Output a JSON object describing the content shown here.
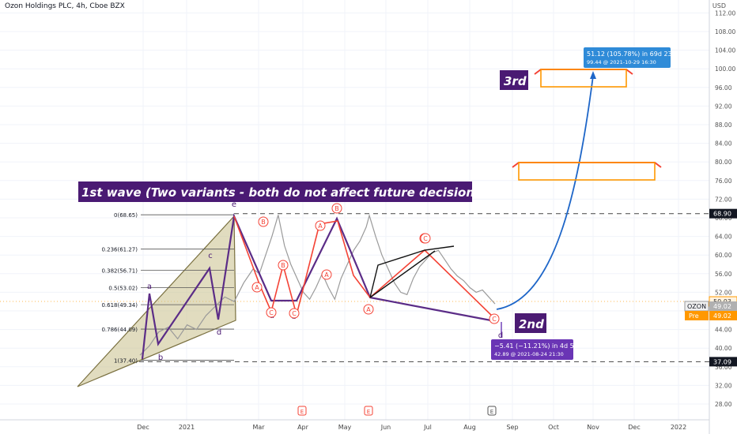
{
  "header": {
    "symbol_title": "Ozon Holdings PLC, 4h, Cboe BZX",
    "currency": "USD"
  },
  "chart_data": {
    "type": "line",
    "ylim": [
      25.5,
      112
    ],
    "y_ticks": [
      28,
      32,
      36,
      40,
      44,
      48,
      52,
      56,
      60,
      64,
      68,
      72,
      76,
      80,
      84,
      88,
      92,
      96,
      100,
      104,
      108,
      112
    ],
    "x_ticks": [
      "Dec",
      "2021",
      "Mar",
      "Apr",
      "May",
      "Jun",
      "Jul",
      "Aug",
      "Sep",
      "Oct",
      "Nov",
      "Dec",
      "2022"
    ],
    "series": [
      {
        "values": [
          [
            0,
            38.5
          ],
          [
            3,
            40.5
          ],
          [
            6,
            43.5
          ],
          [
            9,
            44.5
          ],
          [
            12,
            42
          ],
          [
            15,
            45
          ],
          [
            18,
            44
          ],
          [
            21,
            47
          ],
          [
            24,
            49
          ],
          [
            27,
            51
          ],
          [
            30,
            50
          ],
          [
            33,
            54
          ],
          [
            36,
            57
          ],
          [
            38,
            56
          ],
          [
            40,
            60
          ],
          [
            42,
            64
          ],
          [
            44,
            68.6
          ],
          [
            46,
            62
          ],
          [
            48,
            58
          ],
          [
            50,
            55
          ],
          [
            52,
            52
          ],
          [
            54,
            50.5
          ],
          [
            56,
            53
          ],
          [
            58,
            56
          ],
          [
            60,
            53
          ],
          [
            62,
            50.5
          ],
          [
            64,
            55
          ],
          [
            66,
            58
          ],
          [
            68,
            61
          ],
          [
            70,
            63
          ],
          [
            72,
            66
          ],
          [
            73,
            68.5
          ],
          [
            75,
            64
          ],
          [
            77,
            60
          ],
          [
            79,
            57
          ],
          [
            81,
            54
          ],
          [
            83,
            52
          ],
          [
            85,
            51.5
          ],
          [
            87,
            55
          ],
          [
            89,
            57.5
          ],
          [
            91,
            59
          ],
          [
            93,
            60.5
          ],
          [
            95,
            61
          ],
          [
            97,
            59
          ],
          [
            99,
            57
          ],
          [
            101,
            55.5
          ],
          [
            103,
            54.5
          ],
          [
            105,
            53
          ],
          [
            107,
            52
          ],
          [
            109,
            52.5
          ],
          [
            111,
            51
          ],
          [
            113,
            49.5
          ]
        ]
      }
    ],
    "current_price": "49.02",
    "labels": {
      "ticker_tag": "OZON",
      "price_tag": "49.02",
      "pre_tag": "Pre",
      "pre_price": "49.02",
      "level_top": "68.90",
      "level_bottom": "37.09",
      "level_mid": "50.03"
    },
    "title_banner": "1st wave (Two variants - both do not affect future decisions)",
    "callouts": {
      "third": "3rd",
      "second": "2nd"
    },
    "fib_levels": [
      {
        "label": "0(68.65)",
        "value": 68.65
      },
      {
        "label": "0.236(61.27)",
        "value": 61.27
      },
      {
        "label": "0.382(56.71)",
        "value": 56.71
      },
      {
        "label": "0.5(53.02)",
        "value": 53.02
      },
      {
        "label": "0.618(49.34)",
        "value": 49.34
      },
      {
        "label": "0.786(44.09)",
        "value": 44.09
      },
      {
        "label": "1(37.40)",
        "value": 37.4
      }
    ],
    "up_measure": {
      "line1": "51.12 (105.78%) in 69d 23h",
      "line2": "99.44 @ 2021-10-29  16:30"
    },
    "down_measure": {
      "line1": "−5.41 (−11.21%) in 4d 5h",
      "line2": "42.89 @ 2021-08-24  21:30"
    },
    "wave_letters": [
      "a",
      "b",
      "c",
      "d",
      "e",
      "a",
      "b",
      "c",
      "d",
      "a",
      "b"
    ],
    "circled_letters": [
      "A",
      "B",
      "C",
      "A",
      "B",
      "C",
      "A",
      "B",
      "C",
      "A",
      "B",
      "C",
      "B",
      "C"
    ],
    "event_markers": [
      "E",
      "E",
      "E"
    ],
    "colors": {
      "accent_blue": "#2962ff",
      "purple": "#5b2c87",
      "orange": "#ff9800",
      "red": "#f44336",
      "olive_fill": "#c8c08a"
    }
  }
}
